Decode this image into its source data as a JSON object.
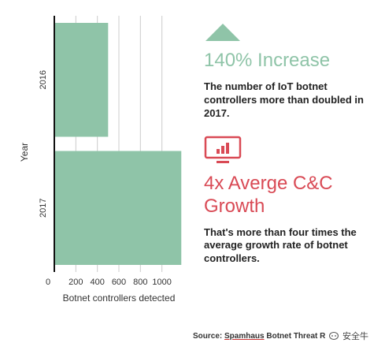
{
  "chart_data": {
    "type": "bar",
    "orientation": "horizontal",
    "categories": [
      "2016",
      "2017"
    ],
    "values": [
      500,
      1180
    ],
    "xlabel": "Botnet controllers detected",
    "ylabel": "Year",
    "xlim": [
      0,
      1200
    ],
    "xticks": [
      "0",
      "200",
      "400",
      "600",
      "800",
      "1000"
    ],
    "grid": true,
    "bar_color": "#8fc4a8"
  },
  "stats": [
    {
      "icon": "triangle-up-icon",
      "headline": "140% Increase",
      "description": "The number of IoT botnet controllers more than doubled in 2017.",
      "color": "#8fc4a8"
    },
    {
      "icon": "monitor-chart-icon",
      "headline": "4x Averge C&C Growth",
      "description": "That's more than four times the average growth rate of botnet controllers.",
      "color": "#d94a55"
    }
  ],
  "source": {
    "prefix": "Source:",
    "publisher": "Spamhaus",
    "rest": "Botnet Threat R"
  },
  "watermark": "安全牛"
}
